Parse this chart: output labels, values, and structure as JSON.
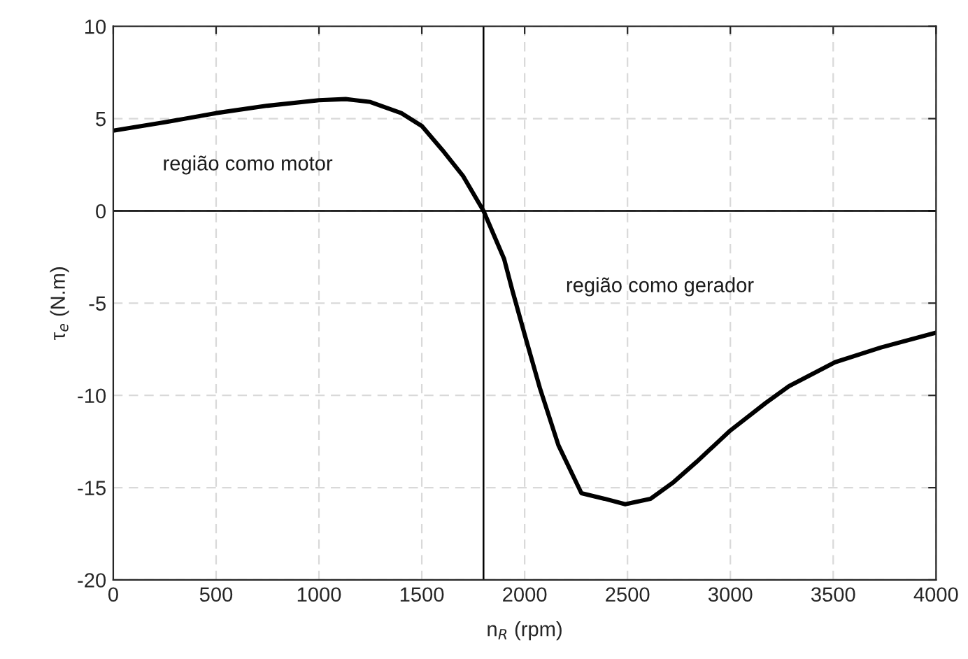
{
  "chart_data": {
    "type": "line",
    "xlabel": "n$_{R}$ (rpm)",
    "ylabel": "τ$_{e}$ (N.m)",
    "x": [
      0,
      250,
      500,
      750,
      1000,
      1130,
      1250,
      1400,
      1500,
      1600,
      1700,
      1800,
      1900,
      1940,
      2000,
      2074,
      2164,
      2276,
      2388,
      2489,
      2612,
      2724,
      2836,
      3000,
      3173,
      3285,
      3509,
      3733,
      4000
    ],
    "series": [
      {
        "color": "#000000",
        "values": [
          4.35,
          4.8,
          5.3,
          5.7,
          6.0,
          6.06,
          5.9,
          5.3,
          4.6,
          3.3,
          1.9,
          0,
          -2.6,
          -4.3,
          -6.7,
          -9.6,
          -12.7,
          -15.3,
          -15.6,
          -15.9,
          -15.6,
          -14.7,
          -13.6,
          -11.9,
          -10.4,
          -9.5,
          -8.2,
          -7.4,
          -6.6
        ]
      }
    ],
    "xlim": [
      0,
      4000
    ],
    "ylim": [
      -20,
      10
    ],
    "xticks": [
      0,
      500,
      1000,
      1500,
      2000,
      2500,
      3000,
      3500,
      4000
    ],
    "yticks": [
      -20,
      -15,
      -10,
      -5,
      0,
      5,
      10
    ],
    "grid": true,
    "line_style": "solid",
    "ref_lines": [
      {
        "axis": "x",
        "value": 1800,
        "color": "#000000"
      },
      {
        "axis": "y",
        "value": 0,
        "color": "#000000"
      }
    ],
    "annotations": [
      "região como motor",
      "região como gerador"
    ]
  }
}
